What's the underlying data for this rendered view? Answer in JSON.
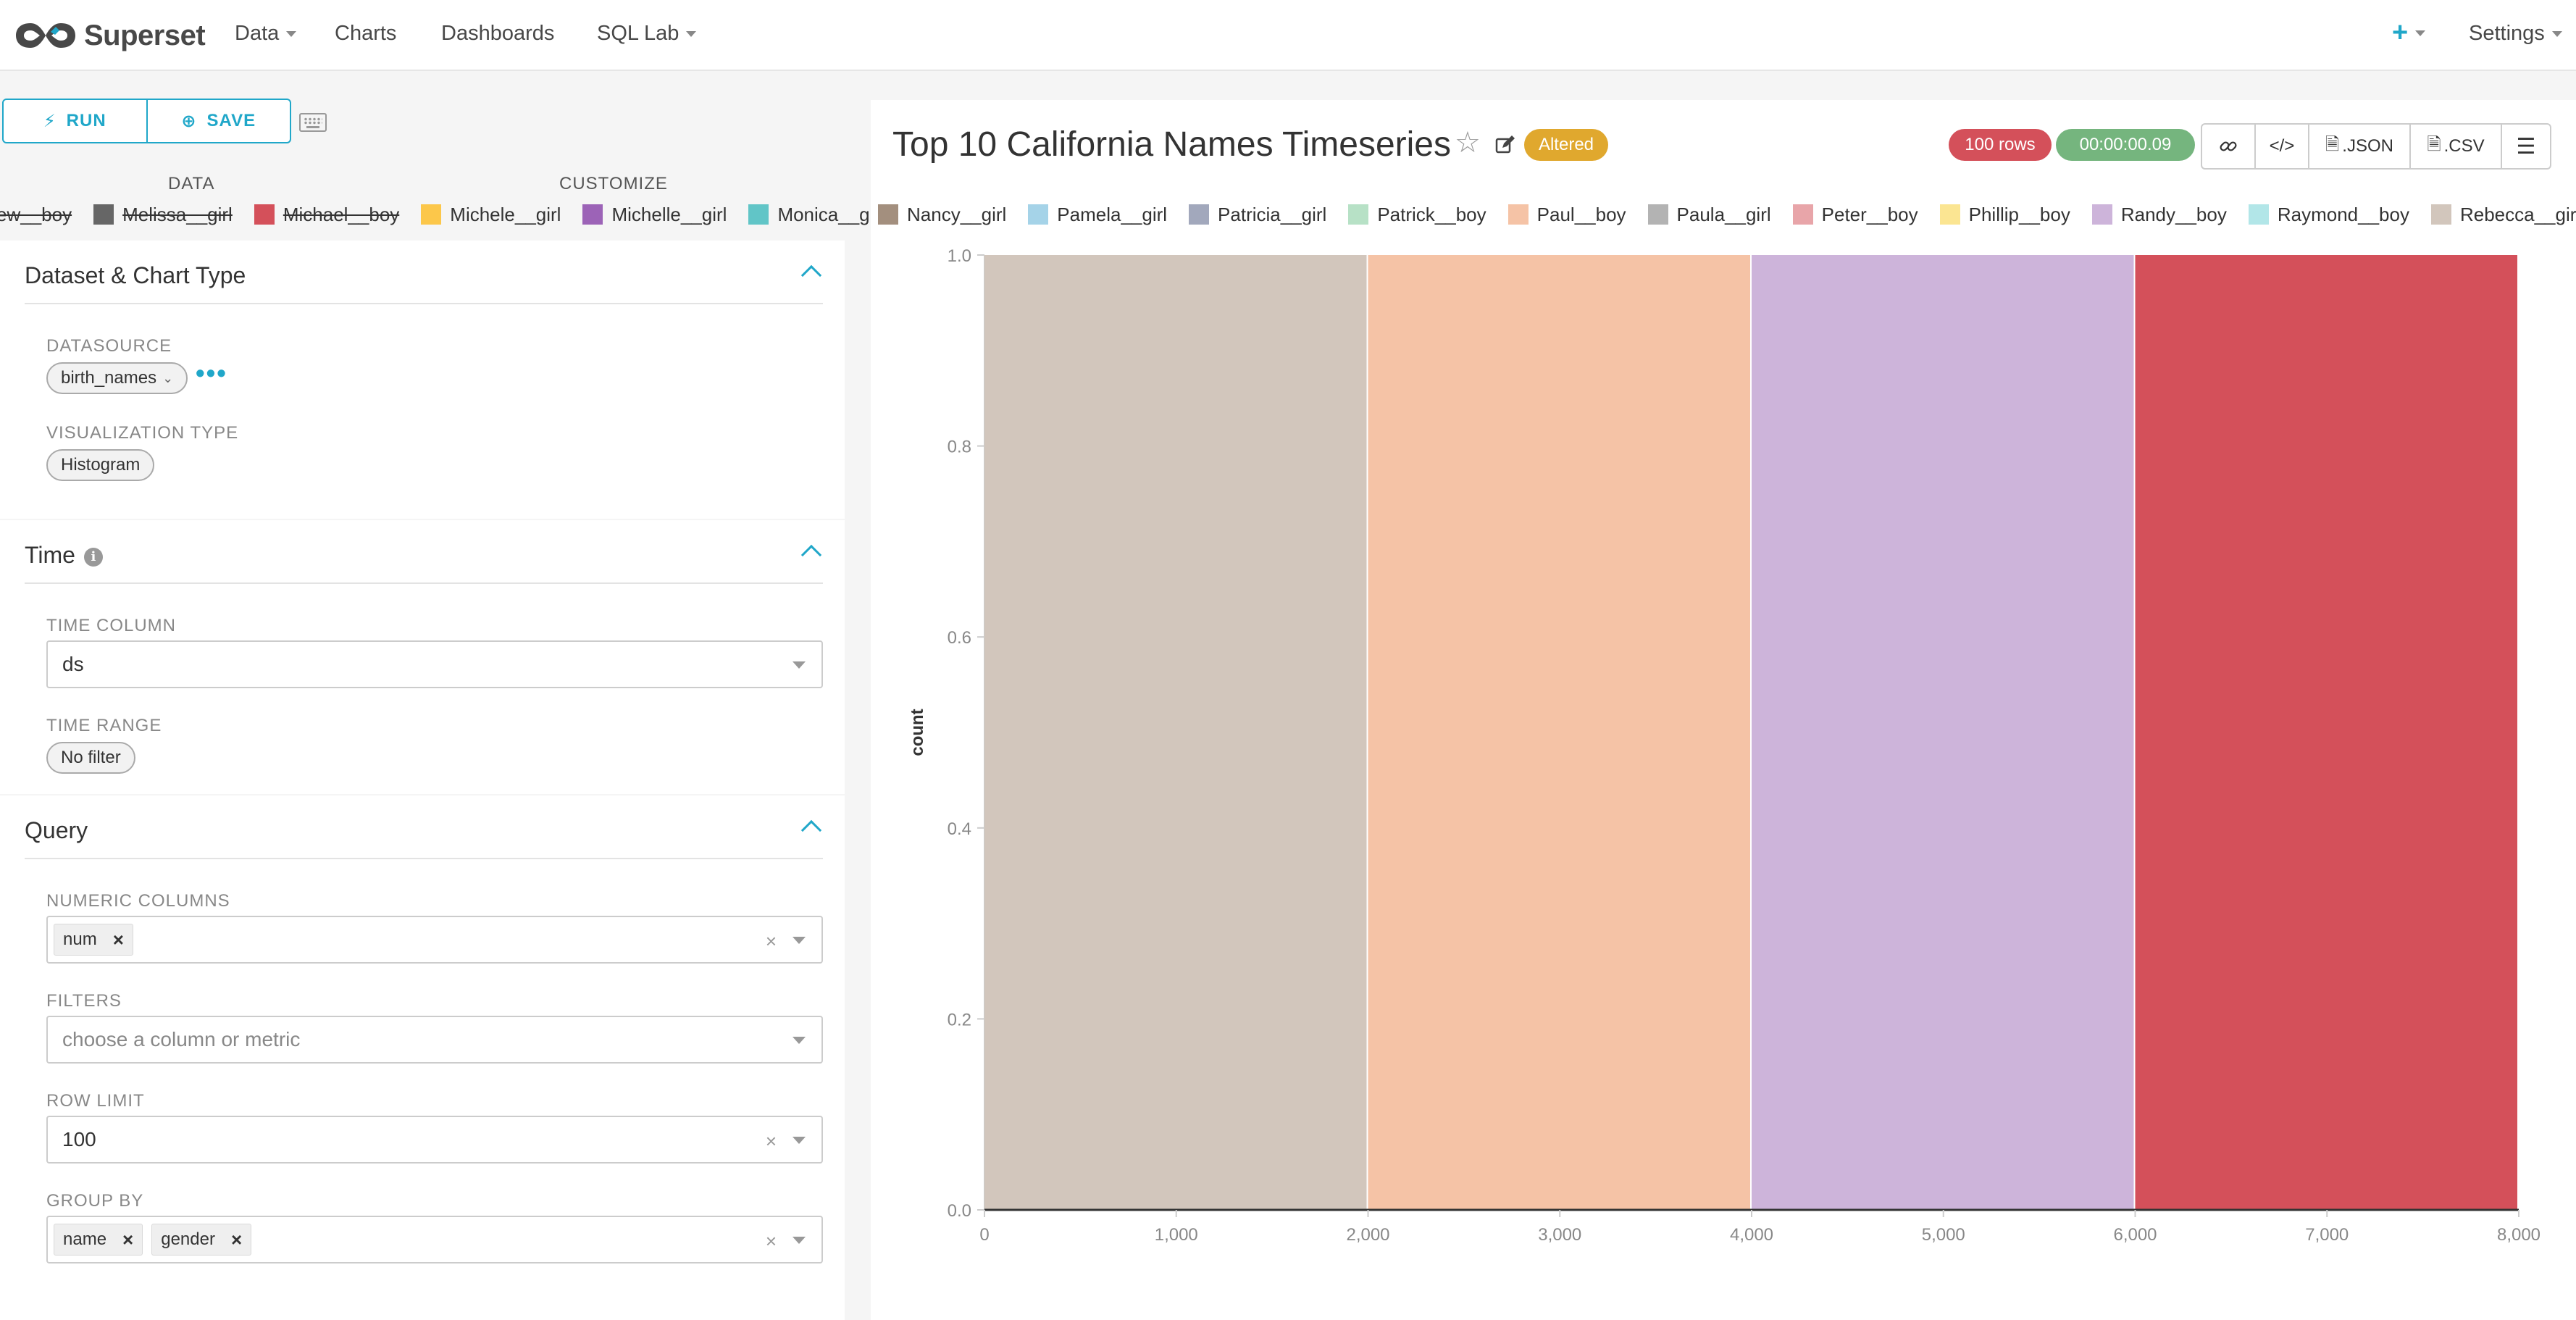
{
  "navbar": {
    "brand": "Superset",
    "items": [
      {
        "label": "Data",
        "dropdown": true
      },
      {
        "label": "Charts",
        "dropdown": false
      },
      {
        "label": "Dashboards",
        "dropdown": false
      },
      {
        "label": "SQL Lab",
        "dropdown": true
      }
    ],
    "plus": "+",
    "settings": "Settings"
  },
  "toolbar": {
    "run_label": "RUN",
    "save_label": "SAVE"
  },
  "tabs": {
    "data": "DATA",
    "customize": "CUSTOMIZE"
  },
  "left_legend": [
    {
      "label": "Matthew__boy",
      "color": "#2e6da4",
      "disabled": true
    },
    {
      "label": "Melissa__girl",
      "color": "#666666",
      "disabled": true
    },
    {
      "label": "Michael__boy",
      "color": "#d4505a",
      "disabled": true
    },
    {
      "label": "Michele__girl",
      "color": "#fcc74a",
      "disabled": false
    },
    {
      "label": "Michelle__girl",
      "color": "#9c63b7",
      "disabled": false
    },
    {
      "label": "Monica__girl",
      "color": "#61c5c7",
      "disabled": false
    }
  ],
  "sections": {
    "dataset": {
      "title": "Dataset & Chart Type",
      "datasource_label": "DATASOURCE",
      "datasource_value": "birth_names",
      "viz_label": "VISUALIZATION TYPE",
      "viz_value": "Histogram"
    },
    "time": {
      "title": "Time",
      "column_label": "TIME COLUMN",
      "column_value": "ds",
      "range_label": "TIME RANGE",
      "range_value": "No filter"
    },
    "query": {
      "title": "Query",
      "numeric_label": "NUMERIC COLUMNS",
      "numeric_tags": [
        "num"
      ],
      "filters_label": "FILTERS",
      "filters_placeholder": "choose a column or metric",
      "row_limit_label": "ROW LIMIT",
      "row_limit_value": "100",
      "groupby_label": "GROUP BY",
      "groupby_tags": [
        "name",
        "gender"
      ]
    }
  },
  "chart": {
    "title": "Top 10 California Names Timeseries",
    "altered_badge": "Altered",
    "rows_badge": "100 rows",
    "time_badge": "00:00:00.09",
    "actions": {
      "json": ".JSON",
      "csv": ".CSV"
    },
    "colors": {
      "rows": "#d4505a",
      "time": "#75b57e",
      "altered": "#e0a82e"
    }
  },
  "chart_legend": [
    {
      "label": "Nancy__girl",
      "color": "#a38f7e"
    },
    {
      "label": "Pamela__girl",
      "color": "#a5d3e8"
    },
    {
      "label": "Patricia__girl",
      "color": "#a2a8bc"
    },
    {
      "label": "Patrick__boy",
      "color": "#b7e1c6"
    },
    {
      "label": "Paul__boy",
      "color": "#f5c3a6"
    },
    {
      "label": "Paula__girl",
      "color": "#b3b3b3"
    },
    {
      "label": "Peter__boy",
      "color": "#e8a5a9"
    },
    {
      "label": "Phillip__boy",
      "color": "#fbe592"
    },
    {
      "label": "Randy__boy",
      "color": "#cdb4da"
    },
    {
      "label": "Raymond__boy",
      "color": "#b2e6e8"
    },
    {
      "label": "Rebecca__girl",
      "color": "#d2c6bc"
    }
  ],
  "chart_data": {
    "type": "bar",
    "ylabel": "count",
    "xlim": [
      0,
      8000
    ],
    "ylim": [
      0,
      1.0
    ],
    "x_ticks": [
      0,
      1000,
      2000,
      3000,
      4000,
      5000,
      6000,
      7000,
      8000
    ],
    "x_tick_labels": [
      "0",
      "1,000",
      "2,000",
      "3,000",
      "4,000",
      "5,000",
      "6,000",
      "7,000",
      "8,000"
    ],
    "y_ticks": [
      0.0,
      0.2,
      0.4,
      0.6,
      0.8,
      1.0
    ],
    "y_tick_labels": [
      "0.0",
      "0.2",
      "0.4",
      "0.6",
      "0.8",
      "1.0"
    ],
    "bins": [
      {
        "x0": 0,
        "x1": 2000,
        "value": 1.0,
        "color": "#d2c6bc"
      },
      {
        "x0": 2000,
        "x1": 4000,
        "value": 1.0,
        "color": "#f5c3a6"
      },
      {
        "x0": 4000,
        "x1": 6000,
        "value": 1.0,
        "color": "#cdb4da"
      },
      {
        "x0": 6000,
        "x1": 8000,
        "value": 1.0,
        "color": "#d4505a"
      }
    ]
  }
}
